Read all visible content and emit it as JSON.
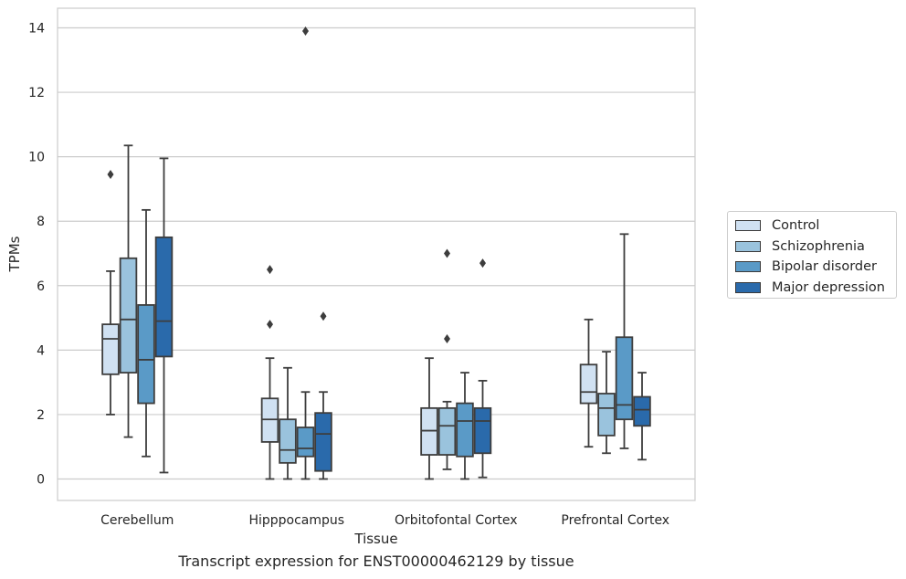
{
  "chart_data": {
    "type": "box",
    "title": "Transcript expression for ENST00000462129 by tissue",
    "xlabel": "Tissue",
    "ylabel": "TPMs",
    "ylim": [
      -0.65,
      14.6
    ],
    "yticks": [
      "0",
      "2",
      "4",
      "6",
      "8",
      "10",
      "12",
      "14"
    ],
    "grid": "horizontal",
    "legend_position": "right",
    "categories": [
      "Cerebellum",
      "Hipppocampus",
      "Orbitofontal Cortex",
      "Prefrontal Cortex"
    ],
    "series": [
      {
        "name": "Control",
        "color": "#d0e1f2",
        "boxes": [
          {
            "whislo": 2.0,
            "q1": 3.25,
            "med": 4.35,
            "q3": 4.8,
            "whishi": 6.45,
            "fliers": [
              9.45
            ]
          },
          {
            "whislo": 0.0,
            "q1": 1.15,
            "med": 1.85,
            "q3": 2.5,
            "whishi": 3.75,
            "fliers": [
              4.8,
              6.5
            ]
          },
          {
            "whislo": 0.0,
            "q1": 0.75,
            "med": 1.5,
            "q3": 2.2,
            "whishi": 3.75,
            "fliers": []
          },
          {
            "whislo": 1.0,
            "q1": 2.35,
            "med": 2.7,
            "q3": 3.55,
            "whishi": 4.95,
            "fliers": []
          }
        ]
      },
      {
        "name": "Schizophrenia",
        "color": "#9ac3dd",
        "boxes": [
          {
            "whislo": 1.3,
            "q1": 3.3,
            "med": 4.95,
            "q3": 6.85,
            "whishi": 10.35,
            "fliers": []
          },
          {
            "whislo": 0.0,
            "q1": 0.5,
            "med": 0.9,
            "q3": 1.85,
            "whishi": 3.45,
            "fliers": []
          },
          {
            "whislo": 0.3,
            "q1": 0.75,
            "med": 1.65,
            "q3": 2.2,
            "whishi": 2.4,
            "fliers": [
              4.35,
              7.0
            ]
          },
          {
            "whislo": 0.8,
            "q1": 1.35,
            "med": 2.2,
            "q3": 2.65,
            "whishi": 3.95,
            "fliers": []
          }
        ]
      },
      {
        "name": "Bipolar disorder",
        "color": "#5a9ac7",
        "boxes": [
          {
            "whislo": 0.7,
            "q1": 2.35,
            "med": 3.7,
            "q3": 5.4,
            "whishi": 8.35,
            "fliers": []
          },
          {
            "whislo": 0.0,
            "q1": 0.7,
            "med": 0.95,
            "q3": 1.6,
            "whishi": 2.7,
            "fliers": [
              13.9
            ]
          },
          {
            "whislo": 0.0,
            "q1": 0.7,
            "med": 1.8,
            "q3": 2.35,
            "whishi": 3.3,
            "fliers": []
          },
          {
            "whislo": 0.95,
            "q1": 1.85,
            "med": 2.3,
            "q3": 4.4,
            "whishi": 7.6,
            "fliers": []
          }
        ]
      },
      {
        "name": "Major depression",
        "color": "#2a6aab",
        "boxes": [
          {
            "whislo": 0.2,
            "q1": 3.8,
            "med": 4.9,
            "q3": 7.5,
            "whishi": 9.95,
            "fliers": []
          },
          {
            "whislo": 0.0,
            "q1": 0.25,
            "med": 1.4,
            "q3": 2.05,
            "whishi": 2.7,
            "fliers": [
              5.05
            ]
          },
          {
            "whislo": 0.05,
            "q1": 0.8,
            "med": 1.8,
            "q3": 2.2,
            "whishi": 3.05,
            "fliers": [
              6.7
            ]
          },
          {
            "whislo": 0.6,
            "q1": 1.65,
            "med": 2.15,
            "q3": 2.55,
            "whishi": 3.3,
            "fliers": []
          }
        ]
      }
    ]
  }
}
